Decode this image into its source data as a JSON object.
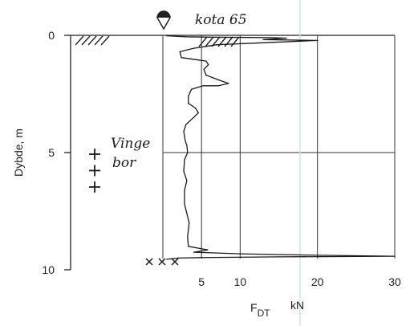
{
  "chart_data": {
    "type": "line",
    "title": "",
    "xlabel": {
      "main": "F",
      "sub": "DT",
      "unit": "kN"
    },
    "ylabel": "Dybde, m",
    "xlim": [
      0,
      30
    ],
    "ylim": [
      0,
      10
    ],
    "y_inverted": true,
    "x_ticks": [
      "5",
      "10",
      "20",
      "30"
    ],
    "y_ticks": [
      "0",
      "5",
      "10"
    ],
    "grid": true,
    "annotations": {
      "elevation": "kota 65",
      "vane_label": "Vinge bor"
    },
    "vane_test_depths": [
      5.0,
      5.7,
      6.4
    ],
    "markers_at_base": 3,
    "series": [
      {
        "x": [
          0.5,
          3,
          6,
          14,
          16,
          13,
          20,
          14,
          7,
          4,
          2.2,
          2.4,
          3.5,
          5.6,
          5.9,
          5.3,
          5.6,
          7.2,
          8.5,
          7.2,
          5.2,
          3.7,
          3.3,
          3.3,
          4.2,
          4.6,
          4.0,
          3.0,
          2.7,
          2.8,
          2.9,
          3.1,
          3.2,
          2.8,
          2.7,
          3.1,
          2.8,
          2.8,
          3.4,
          3.2,
          3.3,
          5.8,
          4.0,
          10,
          20,
          30,
          15,
          5,
          2,
          0.5
        ],
        "y": [
          0.02,
          0.06,
          0.08,
          0.1,
          0.12,
          0.18,
          0.22,
          0.3,
          0.4,
          0.55,
          0.7,
          0.95,
          1.0,
          1.1,
          1.25,
          1.45,
          1.7,
          1.9,
          2.05,
          2.15,
          2.15,
          2.3,
          2.6,
          2.9,
          3.1,
          3.3,
          3.5,
          3.8,
          4.1,
          4.3,
          4.5,
          4.7,
          5.0,
          5.3,
          5.8,
          6.2,
          6.6,
          7.2,
          8.0,
          8.6,
          9.0,
          9.15,
          9.25,
          9.32,
          9.38,
          9.42,
          9.45,
          9.48,
          9.5,
          9.55
        ]
      }
    ]
  }
}
